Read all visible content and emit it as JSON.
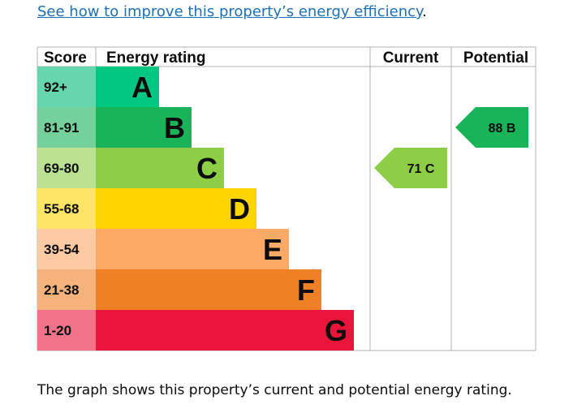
{
  "link": {
    "text": "See how to improve this property’s energy efficiency",
    "trailing": "."
  },
  "headers": {
    "score": "Score",
    "rating": "Energy rating",
    "current": "Current",
    "potential": "Potential"
  },
  "bands": [
    {
      "score": "92+",
      "letter": "A",
      "color": "#00c781",
      "light": "#66d6ad"
    },
    {
      "score": "81-91",
      "letter": "B",
      "color": "#19b459",
      "light": "#75d19b"
    },
    {
      "score": "69-80",
      "letter": "C",
      "color": "#8dce46",
      "light": "#bbe291"
    },
    {
      "score": "55-68",
      "letter": "D",
      "color": "#ffd500",
      "light": "#ffe566"
    },
    {
      "score": "39-54",
      "letter": "E",
      "color": "#fcaa65",
      "light": "#fdcba3"
    },
    {
      "score": "21-38",
      "letter": "F",
      "color": "#ef8023",
      "light": "#f5b37b"
    },
    {
      "score": "1-20",
      "letter": "G",
      "color": "#e9153b",
      "light": "#f27389"
    }
  ],
  "current": {
    "value": "71",
    "letter": "C",
    "label": "71 C",
    "color": "#8dce46"
  },
  "potential": {
    "value": "88",
    "letter": "B",
    "label": "88 B",
    "color": "#19b459"
  },
  "caption": "The graph shows this property’s current and potential energy rating."
}
